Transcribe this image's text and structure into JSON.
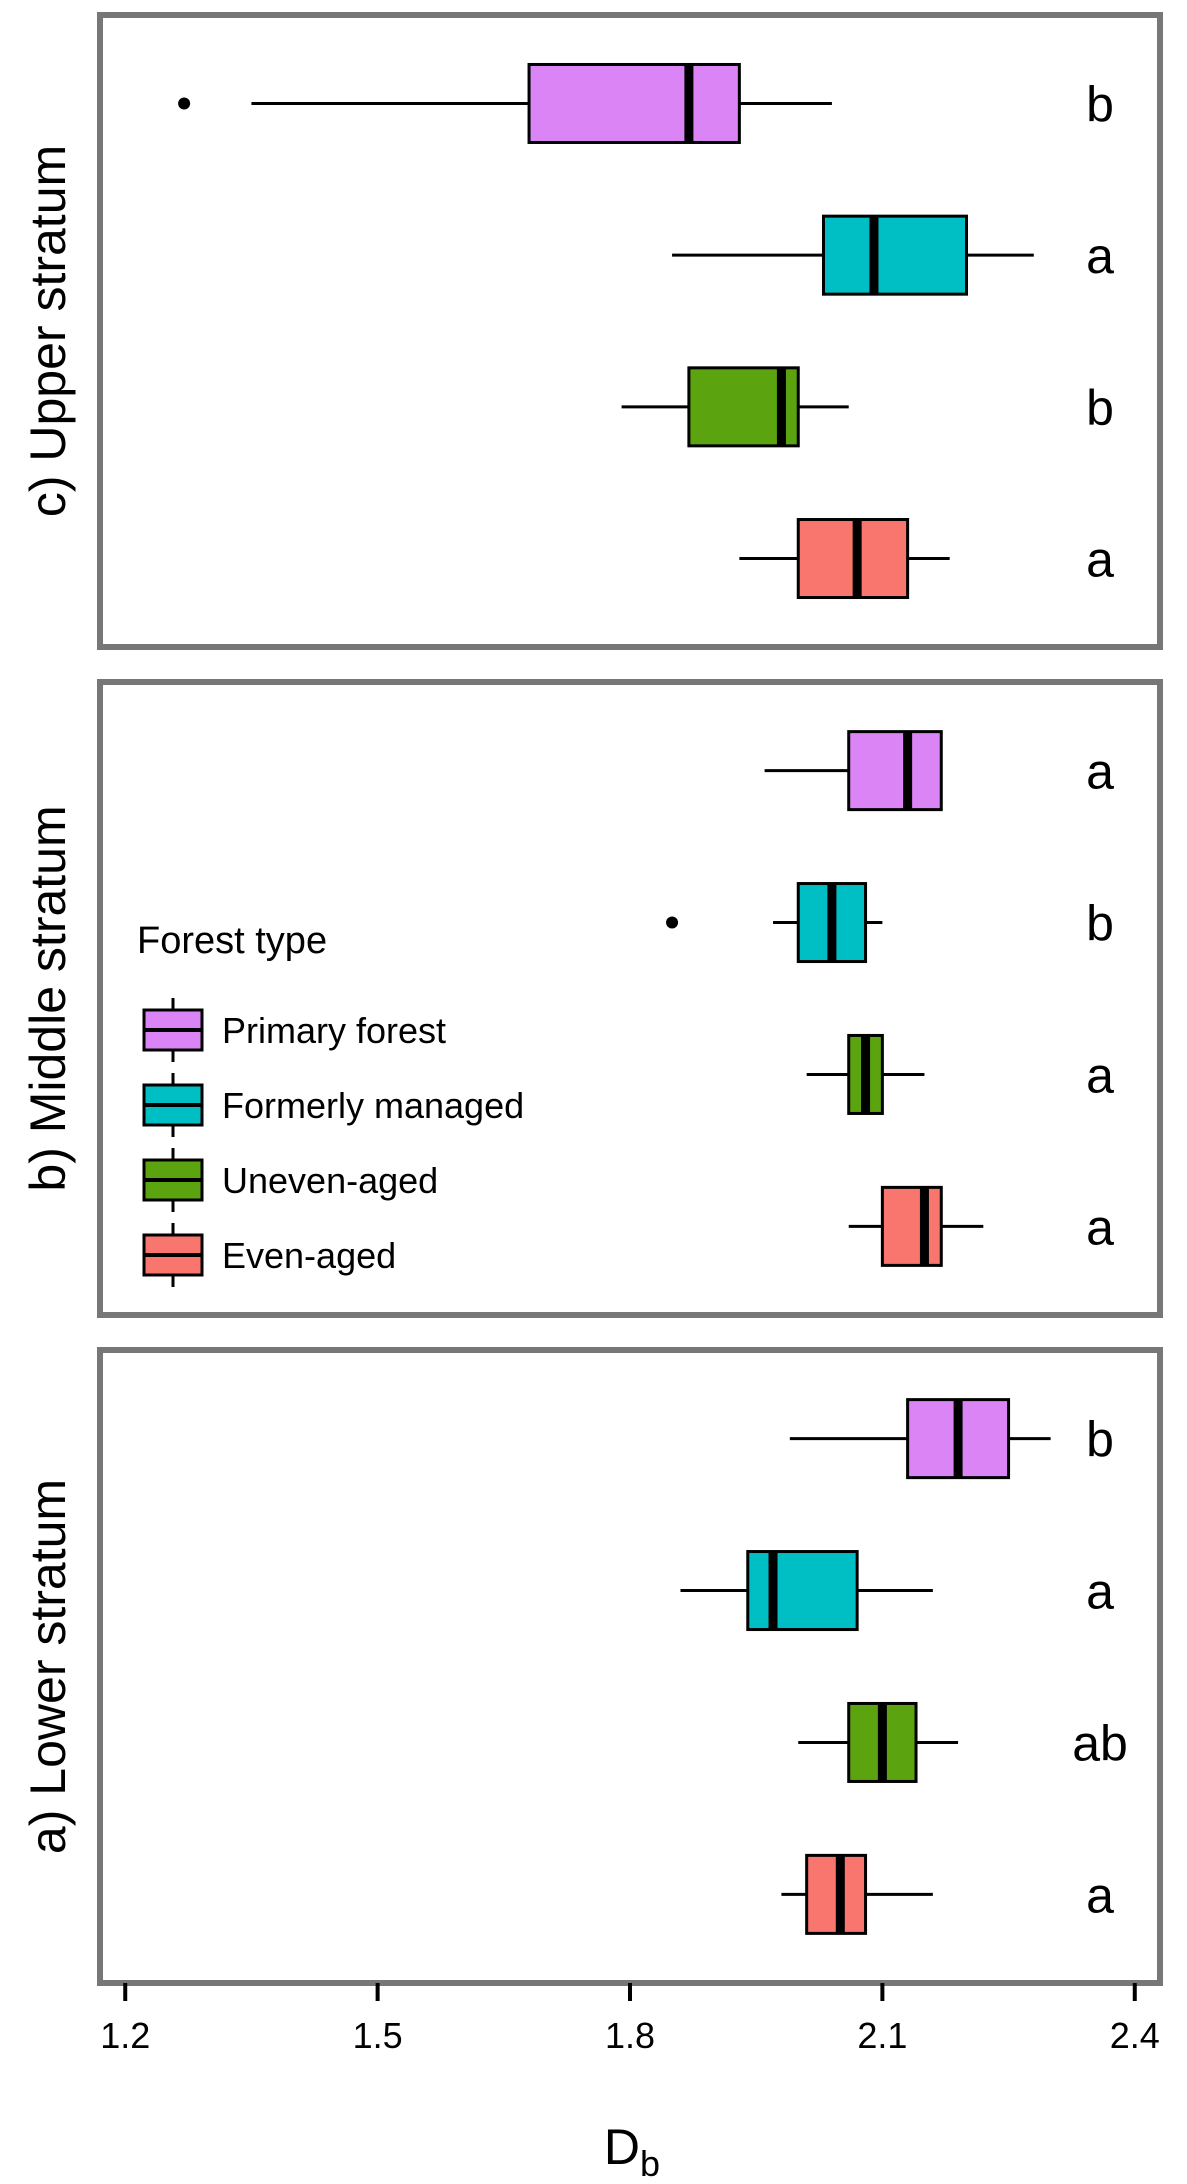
{
  "chart_data": {
    "type": "boxplot",
    "orientation": "horizontal",
    "xlabel": "D",
    "xlabel_subscript": "b",
    "xlim": [
      1.17,
      2.43
    ],
    "xticks": [
      1.2,
      1.5,
      1.8,
      2.1,
      2.4
    ],
    "xtick_labels": [
      "1.2",
      "1.5",
      "1.8",
      "2.1",
      "2.4"
    ],
    "legend": {
      "title": "Forest type",
      "placement": "left-middle, inside panel b",
      "entries": [
        {
          "label": "Primary forest",
          "color": "#DA84F5"
        },
        {
          "label": "Formerly managed",
          "color": "#00BFC4"
        },
        {
          "label": "Uneven-aged",
          "color": "#5BA30F"
        },
        {
          "label": "Even-aged",
          "color": "#F8766D"
        }
      ]
    },
    "panels": [
      {
        "id": "c",
        "label": "c)  Upper stratum",
        "boxes": [
          {
            "group": "Primary forest",
            "whisker_low": 1.35,
            "q1": 1.68,
            "median": 1.87,
            "q3": 1.93,
            "whisker_high": 2.04,
            "outliers": [
              1.27
            ],
            "letter": "b"
          },
          {
            "group": "Formerly managed",
            "whisker_low": 1.85,
            "q1": 2.03,
            "median": 2.09,
            "q3": 2.2,
            "whisker_high": 2.28,
            "outliers": [],
            "letter": "a"
          },
          {
            "group": "Uneven-aged",
            "whisker_low": 1.79,
            "q1": 1.87,
            "median": 1.98,
            "q3": 2.0,
            "whisker_high": 2.06,
            "outliers": [],
            "letter": "b"
          },
          {
            "group": "Even-aged",
            "whisker_low": 1.93,
            "q1": 2.0,
            "median": 2.07,
            "q3": 2.13,
            "whisker_high": 2.18,
            "outliers": [],
            "letter": "a"
          }
        ]
      },
      {
        "id": "b",
        "label": "b)  Middle stratum",
        "boxes": [
          {
            "group": "Primary forest",
            "whisker_low": 1.96,
            "q1": 2.06,
            "median": 2.13,
            "q3": 2.17,
            "whisker_high": 2.17,
            "outliers": [],
            "letter": "a"
          },
          {
            "group": "Formerly managed",
            "whisker_low": 1.97,
            "q1": 2.0,
            "median": 2.04,
            "q3": 2.08,
            "whisker_high": 2.1,
            "outliers": [
              1.85
            ],
            "letter": "b"
          },
          {
            "group": "Uneven-aged",
            "whisker_low": 2.01,
            "q1": 2.06,
            "median": 2.08,
            "q3": 2.1,
            "whisker_high": 2.15,
            "outliers": [],
            "letter": "a"
          },
          {
            "group": "Even-aged",
            "whisker_low": 2.06,
            "q1": 2.1,
            "median": 2.15,
            "q3": 2.17,
            "whisker_high": 2.22,
            "outliers": [],
            "letter": "a"
          }
        ]
      },
      {
        "id": "a",
        "label": "a)  Lower stratum",
        "boxes": [
          {
            "group": "Primary forest",
            "whisker_low": 1.99,
            "q1": 2.13,
            "median": 2.19,
            "q3": 2.25,
            "whisker_high": 2.3,
            "outliers": [],
            "letter": "b"
          },
          {
            "group": "Formerly managed",
            "whisker_low": 1.86,
            "q1": 1.94,
            "median": 1.97,
            "q3": 2.07,
            "whisker_high": 2.16,
            "outliers": [],
            "letter": "a"
          },
          {
            "group": "Uneven-aged",
            "whisker_low": 2.0,
            "q1": 2.06,
            "median": 2.1,
            "q3": 2.14,
            "whisker_high": 2.19,
            "outliers": [],
            "letter": "ab"
          },
          {
            "group": "Even-aged",
            "whisker_low": 1.98,
            "q1": 2.01,
            "median": 2.05,
            "q3": 2.08,
            "whisker_high": 2.16,
            "outliers": [],
            "letter": "a"
          }
        ]
      }
    ]
  }
}
